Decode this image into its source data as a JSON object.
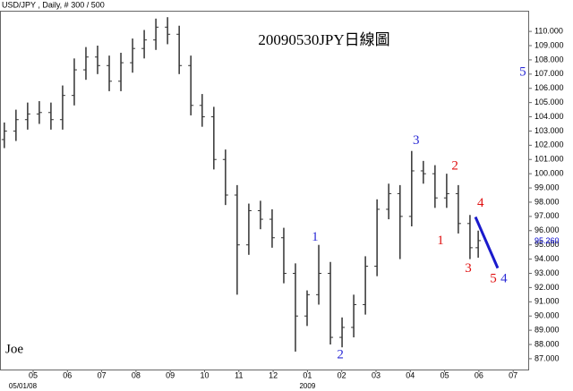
{
  "chart_data": {
    "type": "ohlc",
    "header": "USD/JPY , Daily, # 300 / 500",
    "title": "20090530JPY日線圖",
    "note": "Joe",
    "bar_color": "#333333",
    "xlim": [
      -0.966,
      14.439
    ],
    "ylim": [
      86.24,
      111.39
    ],
    "xticks": [
      {
        "value": 0,
        "label": "05"
      },
      {
        "value": 1,
        "label": "06"
      },
      {
        "value": 2,
        "label": "07"
      },
      {
        "value": 3,
        "label": "08"
      },
      {
        "value": 4,
        "label": "09"
      },
      {
        "value": 5,
        "label": "10"
      },
      {
        "value": 6,
        "label": "11"
      },
      {
        "value": 7,
        "label": "12"
      },
      {
        "value": 8,
        "label": "01"
      },
      {
        "value": 9,
        "label": "02"
      },
      {
        "value": 10,
        "label": "03"
      },
      {
        "value": 11,
        "label": "04"
      },
      {
        "value": 12,
        "label": "05"
      },
      {
        "value": 13,
        "label": "06"
      },
      {
        "value": 14,
        "label": "07"
      }
    ],
    "x_sublabels": [
      {
        "value": -0.3,
        "label": "05/01/08"
      },
      {
        "value": 8,
        "label": "2009"
      }
    ],
    "yticks": [
      {
        "value": 87,
        "label": "87.000"
      },
      {
        "value": 88,
        "label": "88.000"
      },
      {
        "value": 89,
        "label": "89.000"
      },
      {
        "value": 90,
        "label": "90.000"
      },
      {
        "value": 91,
        "label": "91.000"
      },
      {
        "value": 92,
        "label": "92.000"
      },
      {
        "value": 93,
        "label": "93.000"
      },
      {
        "value": 94,
        "label": "94.000"
      },
      {
        "value": 95,
        "label": "95.000"
      },
      {
        "value": 96,
        "label": "96.000"
      },
      {
        "value": 97,
        "label": "97.000"
      },
      {
        "value": 98,
        "label": "98.000"
      },
      {
        "value": 99,
        "label": "99.000"
      },
      {
        "value": 100,
        "label": "100.000"
      },
      {
        "value": 101,
        "label": "101.000"
      },
      {
        "value": 102,
        "label": "102.000"
      },
      {
        "value": 103,
        "label": "103.000"
      },
      {
        "value": 104,
        "label": "104.000"
      },
      {
        "value": 105,
        "label": "105.000"
      },
      {
        "value": 106,
        "label": "106.000"
      },
      {
        "value": 107,
        "label": "107.000"
      },
      {
        "value": 108,
        "label": "108.000"
      },
      {
        "value": 109,
        "label": "109.000"
      },
      {
        "value": 110,
        "label": "110.000"
      }
    ],
    "last_price": {
      "value": 95.26,
      "label": "95.260",
      "color": "#0000cc"
    },
    "x": [
      -0.84,
      -0.5,
      -0.16,
      0.18,
      0.52,
      0.86,
      1.2,
      1.54,
      1.88,
      2.22,
      2.56,
      2.9,
      3.24,
      3.58,
      3.92,
      4.26,
      4.6,
      4.93,
      5.27,
      5.61,
      5.95,
      6.29,
      6.63,
      6.97,
      7.31,
      7.65,
      7.99,
      8.33,
      8.67,
      9.01,
      9.35,
      9.69,
      10.03,
      10.37,
      10.7,
      11.04,
      11.38,
      11.72,
      12.06,
      12.4,
      12.74,
      12.98
    ],
    "open": [
      102.4,
      103.0,
      103.8,
      104.2,
      104.3,
      103.8,
      105.5,
      107.3,
      108.2,
      107.6,
      106.5,
      107.8,
      108.8,
      109.4,
      110.3,
      109.8,
      107.6,
      104.8,
      104.0,
      101.0,
      98.5,
      95.0,
      97.4,
      96.8,
      95.5,
      93.0,
      90.0,
      91.5,
      93.0,
      88.5,
      89.2,
      90.8,
      93.5,
      97.5,
      98.6,
      97.0,
      100.2,
      100.0,
      98.3,
      98.6,
      96.5,
      94.8
    ],
    "high": [
      103.6,
      104.5,
      105.0,
      105.1,
      105.0,
      106.2,
      108.1,
      108.9,
      109.0,
      108.3,
      108.5,
      109.5,
      110.1,
      110.9,
      111.0,
      110.4,
      108.3,
      105.6,
      104.7,
      101.7,
      99.2,
      97.9,
      98.1,
      97.5,
      96.2,
      93.7,
      91.8,
      95.0,
      93.8,
      89.9,
      91.5,
      94.2,
      98.2,
      99.3,
      99.2,
      101.6,
      100.9,
      100.6,
      100.0,
      99.2,
      97.1,
      96.0
    ],
    "low": [
      101.8,
      102.3,
      103.1,
      103.5,
      103.1,
      103.1,
      104.8,
      106.6,
      107.0,
      105.8,
      105.8,
      107.1,
      108.1,
      108.7,
      109.1,
      107.0,
      104.1,
      103.3,
      100.3,
      97.8,
      91.5,
      94.3,
      96.1,
      94.8,
      92.3,
      87.5,
      89.3,
      90.8,
      88.0,
      87.8,
      88.5,
      90.1,
      92.8,
      96.8,
      94.0,
      96.3,
      99.3,
      97.6,
      97.6,
      95.8,
      94.0,
      94.1
    ],
    "close": [
      103.0,
      103.8,
      104.2,
      104.3,
      103.8,
      105.5,
      107.3,
      108.2,
      107.6,
      106.5,
      107.8,
      108.8,
      109.4,
      110.3,
      109.8,
      107.6,
      104.8,
      104.0,
      101.0,
      98.5,
      95.0,
      97.4,
      96.8,
      95.5,
      93.0,
      90.0,
      91.5,
      93.0,
      88.5,
      89.2,
      90.8,
      93.5,
      97.5,
      98.6,
      97.0,
      100.2,
      100.0,
      98.3,
      98.6,
      96.5,
      94.8,
      95.3
    ],
    "projection": {
      "color": "#1a1acc",
      "x": [
        12.9,
        13.55,
        13.86,
        14.31
      ],
      "values": [
        96.96,
        93.37,
        null,
        106.47
      ]
    },
    "annotations": [
      {
        "text": "3",
        "color": "#2b2bd6",
        "x": 11.17,
        "y": 102.3
      },
      {
        "text": "2",
        "color": "#e01010",
        "x": 12.3,
        "y": 100.5
      },
      {
        "text": "4",
        "color": "#e01010",
        "x": 13.05,
        "y": 97.9
      },
      {
        "text": "1",
        "color": "#e01010",
        "x": 11.88,
        "y": 95.25
      },
      {
        "text": "3",
        "color": "#e01010",
        "x": 12.69,
        "y": 93.3
      },
      {
        "text": "1",
        "color": "#2b2bd6",
        "x": 8.22,
        "y": 95.5
      },
      {
        "text": "2",
        "color": "#2b2bd6",
        "x": 8.96,
        "y": 87.25
      },
      {
        "text": "5",
        "color": "#e01010",
        "x": 13.42,
        "y": 92.6
      },
      {
        "text": "4",
        "color": "#2b2bd6",
        "x": 13.73,
        "y": 92.6
      },
      {
        "text": "5",
        "color": "#2b2bd6",
        "x": 14.28,
        "y": 107.1
      }
    ]
  }
}
